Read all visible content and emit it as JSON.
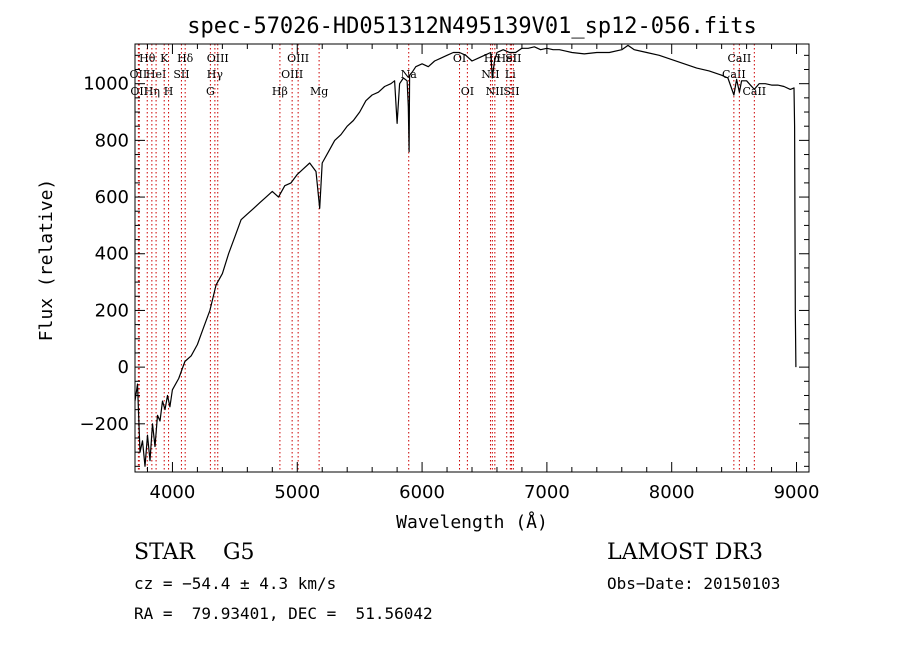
{
  "chart_data": {
    "type": "line",
    "title": "spec-57026-HD051312N495139V01_sp12-056.fits",
    "xlabel": "Wavelength (Å)",
    "ylabel": "Flux (relative)",
    "xlim": [
      3700,
      9100
    ],
    "ylim": [
      -370,
      1140
    ],
    "xticks": [
      4000,
      5000,
      6000,
      7000,
      8000,
      9000
    ],
    "yticks": [
      -200,
      0,
      200,
      400,
      600,
      800,
      1000
    ],
    "grid": false,
    "series": [
      {
        "x": [
          3700,
          3720,
          3740,
          3760,
          3780,
          3800,
          3820,
          3840,
          3860,
          3880,
          3900,
          3920,
          3940,
          3960,
          3980,
          4000,
          4050,
          4100,
          4150,
          4200,
          4250,
          4300,
          4350,
          4400,
          4450,
          4500,
          4550,
          4600,
          4650,
          4700,
          4750,
          4800,
          4850,
          4900,
          4950,
          5000,
          5050,
          5100,
          5150,
          5180,
          5200,
          5250,
          5300,
          5350,
          5400,
          5450,
          5500,
          5550,
          5600,
          5650,
          5700,
          5750,
          5780,
          5800,
          5820,
          5850,
          5880,
          5890,
          5896,
          5900,
          5920,
          5950,
          6000,
          6050,
          6100,
          6150,
          6200,
          6250,
          6300,
          6350,
          6400,
          6450,
          6500,
          6550,
          6563,
          6580,
          6600,
          6650,
          6700,
          6750,
          6800,
          6850,
          6900,
          6950,
          7000,
          7050,
          7100,
          7150,
          7200,
          7300,
          7400,
          7500,
          7600,
          7650,
          7700,
          7800,
          7900,
          8000,
          8100,
          8200,
          8300,
          8400,
          8450,
          8498,
          8520,
          8542,
          8560,
          8600,
          8662,
          8700,
          8750,
          8800,
          8850,
          8900,
          8950,
          8980,
          8985,
          8990,
          8995
        ],
        "values": [
          -120,
          -60,
          -300,
          -260,
          -350,
          -240,
          -330,
          -200,
          -280,
          -170,
          -190,
          -120,
          -150,
          -100,
          -140,
          -80,
          -40,
          20,
          40,
          80,
          140,
          200,
          290,
          330,
          400,
          460,
          520,
          540,
          560,
          580,
          600,
          620,
          600,
          640,
          650,
          680,
          700,
          720,
          690,
          560,
          720,
          760,
          800,
          820,
          850,
          870,
          900,
          940,
          960,
          970,
          990,
          1000,
          1010,
          860,
          1000,
          1020,
          1010,
          920,
          760,
          1030,
          1040,
          1060,
          1070,
          1060,
          1080,
          1090,
          1100,
          1110,
          1110,
          1100,
          1080,
          1090,
          1100,
          1110,
          1020,
          1080,
          1110,
          1120,
          1110,
          1110,
          1125,
          1125,
          1130,
          1120,
          1125,
          1120,
          1120,
          1115,
          1110,
          1105,
          1110,
          1110,
          1120,
          1135,
          1120,
          1110,
          1100,
          1085,
          1070,
          1055,
          1045,
          1030,
          1020,
          960,
          1015,
          970,
          1010,
          1010,
          980,
          1000,
          1000,
          995,
          995,
          990,
          980,
          985,
          850,
          200,
          0
        ]
      }
    ],
    "lines": [
      {
        "x": 3727,
        "labels": [
          "OII"
        ],
        "level": 1
      },
      {
        "x": 3734,
        "labels": [
          "OII"
        ],
        "level": 2
      },
      {
        "x": 3798,
        "labels": [
          "Hθ"
        ],
        "level": 0
      },
      {
        "x": 3835,
        "labels": [
          "Hη"
        ],
        "level": 2
      },
      {
        "x": 3869,
        "labels": [
          "HeI"
        ],
        "level": 1
      },
      {
        "x": 3934,
        "labels": [
          "K"
        ],
        "level": 0
      },
      {
        "x": 3969,
        "labels": [
          "H"
        ],
        "level": 2
      },
      {
        "x": 4072,
        "labels": [
          "SII"
        ],
        "level": 1
      },
      {
        "x": 4102,
        "labels": [
          "Hδ"
        ],
        "level": 0
      },
      {
        "x": 4304,
        "labels": [
          "G"
        ],
        "level": 2
      },
      {
        "x": 4340,
        "labels": [
          "Hγ"
        ],
        "level": 1
      },
      {
        "x": 4363,
        "labels": [
          "OIII"
        ],
        "level": 0
      },
      {
        "x": 4861,
        "labels": [
          "Hβ"
        ],
        "level": 2
      },
      {
        "x": 4959,
        "labels": [
          "OIII"
        ],
        "level": 1
      },
      {
        "x": 5007,
        "labels": [
          "OIII"
        ],
        "level": 0
      },
      {
        "x": 5175,
        "labels": [
          "Mg"
        ],
        "level": 2
      },
      {
        "x": 5893,
        "labels": [
          "Na"
        ],
        "level": 1
      },
      {
        "x": 6300,
        "labels": [
          "OI"
        ],
        "level": 0
      },
      {
        "x": 6363,
        "labels": [
          "OI"
        ],
        "level": 2
      },
      {
        "x": 6548,
        "labels": [
          "NII"
        ],
        "level": 1
      },
      {
        "x": 6563,
        "labels": [
          "Hα"
        ],
        "level": 0
      },
      {
        "x": 6583,
        "labels": [
          "NII"
        ],
        "level": 2
      },
      {
        "x": 6678,
        "labels": [
          "HeI"
        ],
        "level": 0
      },
      {
        "x": 6707,
        "labels": [
          "Li"
        ],
        "level": 1
      },
      {
        "x": 6716,
        "labels": [
          "SII"
        ],
        "level": 2
      },
      {
        "x": 6731,
        "labels": [
          "SII"
        ],
        "level": 0
      },
      {
        "x": 8498,
        "labels": [
          "CaII"
        ],
        "level": 1
      },
      {
        "x": 8542,
        "labels": [
          "CaII"
        ],
        "level": 0
      },
      {
        "x": 8662,
        "labels": [
          "CaII"
        ],
        "level": 2
      }
    ],
    "line_color": "#cc0000"
  },
  "info": {
    "class_label": "STAR",
    "subclass": "G5",
    "survey": "LAMOST DR3",
    "cz": "cz = −54.4 ± 4.3 km/s",
    "obs_date": "Obs−Date: 20150103",
    "coords": "RA =  79.93401, DEC =  51.56042"
  }
}
